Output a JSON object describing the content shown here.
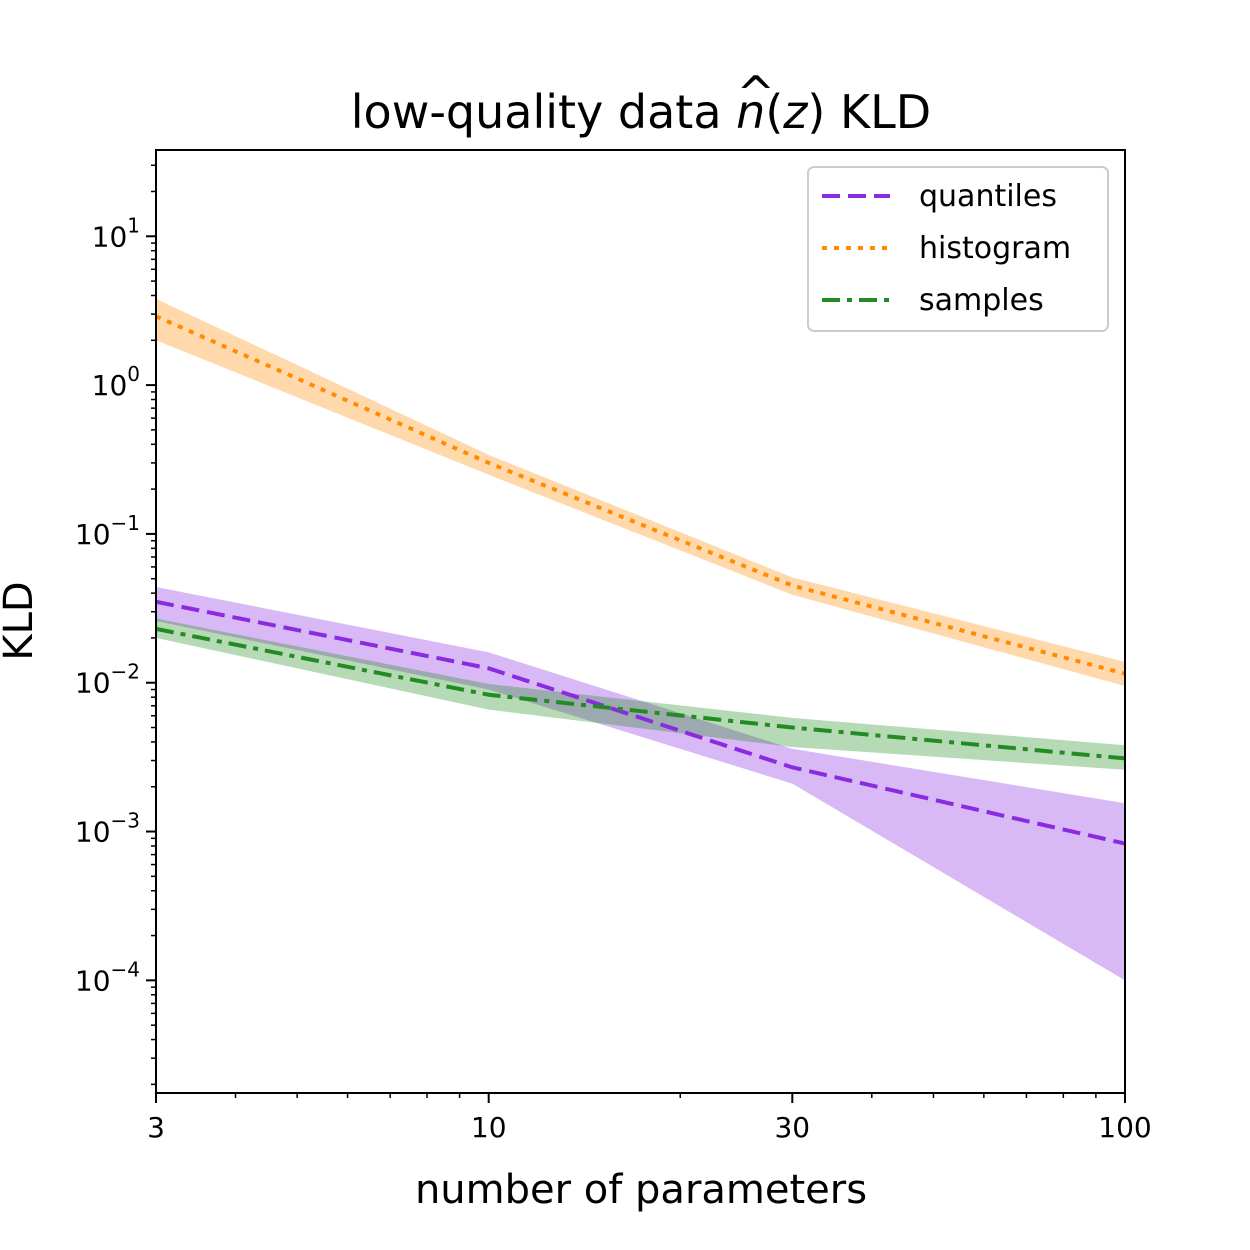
{
  "chart_data": {
    "type": "line",
    "title_prefix": "low-quality data ",
    "title_symbol": "n",
    "title_hat": "^",
    "title_open": "(",
    "title_var": "z",
    "title_close": ")",
    "title_suffix": " KLD",
    "xlabel": "number of parameters",
    "ylabel": "KLD",
    "xscale": "log",
    "yscale": "log",
    "xlim": [
      3,
      100
    ],
    "ylim": [
      1.75e-05,
      38
    ],
    "x": [
      3,
      10,
      30,
      100
    ],
    "x_tick_labels": [
      "3",
      "10",
      "30",
      "100"
    ],
    "y_ticks": [
      {
        "value": 0.0001,
        "base": "10",
        "exp": "−4"
      },
      {
        "value": 0.001,
        "base": "10",
        "exp": "−3"
      },
      {
        "value": 0.01,
        "base": "10",
        "exp": "−2"
      },
      {
        "value": 0.1,
        "base": "10",
        "exp": "−1"
      },
      {
        "value": 1,
        "base": "10",
        "exp": "0"
      },
      {
        "value": 10,
        "base": "10",
        "exp": "1"
      }
    ],
    "legend_position": "top-right",
    "series": [
      {
        "name": "quantiles",
        "color": "#8a2be2",
        "dash": "dashed",
        "values": [
          0.035,
          0.0125,
          0.0027,
          0.00083
        ],
        "lower": [
          0.026,
          0.009,
          0.0021,
          0.0001
        ],
        "upper": [
          0.044,
          0.016,
          0.0036,
          0.00155
        ]
      },
      {
        "name": "histogram",
        "color": "#ff8c00",
        "dash": "dotted",
        "values": [
          2.9,
          0.3,
          0.045,
          0.0115
        ],
        "lower": [
          2.0,
          0.25,
          0.039,
          0.0095
        ],
        "upper": [
          3.8,
          0.34,
          0.051,
          0.0138
        ]
      },
      {
        "name": "samples",
        "color": "#228b22",
        "dash": "dashdot",
        "values": [
          0.023,
          0.0083,
          0.005,
          0.0031
        ],
        "lower": [
          0.02,
          0.0066,
          0.0037,
          0.0026
        ],
        "upper": [
          0.027,
          0.0098,
          0.0058,
          0.0038
        ]
      }
    ]
  }
}
